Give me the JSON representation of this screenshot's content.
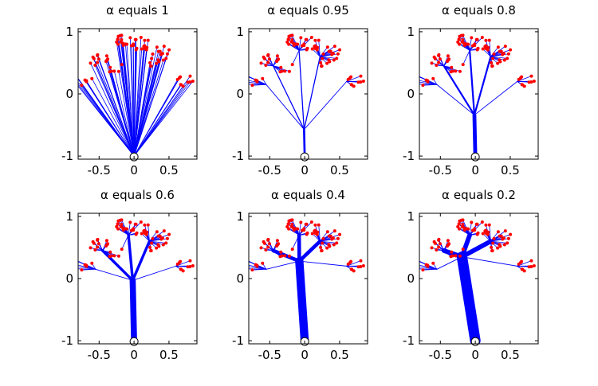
{
  "chart_data": [
    {
      "type": "tree",
      "alpha_symbol": "α",
      "title_text": "equals 1",
      "alpha": 1,
      "xlim": [
        -0.8,
        0.9
      ],
      "ylim": [
        -1.05,
        1.05
      ],
      "xticks": [
        -0.5,
        0,
        0.5
      ],
      "yticks": [
        -1,
        0,
        1
      ],
      "root": [
        0,
        -1
      ]
    },
    {
      "type": "tree",
      "alpha_symbol": "α",
      "title_text": "equals 0.95",
      "alpha": 0.95,
      "xlim": [
        -0.8,
        0.9
      ],
      "ylim": [
        -1.05,
        1.05
      ],
      "xticks": [
        -0.5,
        0,
        0.5
      ],
      "yticks": [
        -1,
        0,
        1
      ],
      "root": [
        0,
        -1
      ]
    },
    {
      "type": "tree",
      "alpha_symbol": "α",
      "title_text": "equals 0.8",
      "alpha": 0.8,
      "xlim": [
        -0.8,
        0.9
      ],
      "ylim": [
        -1.05,
        1.05
      ],
      "xticks": [
        -0.5,
        0,
        0.5
      ],
      "yticks": [
        -1,
        0,
        1
      ],
      "root": [
        0,
        -1
      ]
    },
    {
      "type": "tree",
      "alpha_symbol": "α",
      "title_text": "equals 0.6",
      "alpha": 0.6,
      "xlim": [
        -0.8,
        0.9
      ],
      "ylim": [
        -1.05,
        1.05
      ],
      "xticks": [
        -0.5,
        0,
        0.5
      ],
      "yticks": [
        -1,
        0,
        1
      ],
      "root": [
        0,
        -1
      ]
    },
    {
      "type": "tree",
      "alpha_symbol": "α",
      "title_text": "equals 0.4",
      "alpha": 0.4,
      "xlim": [
        -0.8,
        0.9
      ],
      "ylim": [
        -1.05,
        1.05
      ],
      "xticks": [
        -0.5,
        0,
        0.5
      ],
      "yticks": [
        -1,
        0,
        1
      ],
      "root": [
        0,
        -1
      ]
    },
    {
      "type": "tree",
      "alpha_symbol": "α",
      "title_text": "equals 0.2",
      "alpha": 0.2,
      "xlim": [
        -0.8,
        0.9
      ],
      "ylim": [
        -1.05,
        1.05
      ],
      "xticks": [
        -0.5,
        0,
        0.5
      ],
      "yticks": [
        -1,
        0,
        1
      ],
      "root": [
        0,
        -1
      ]
    }
  ],
  "colors": {
    "branch": "#0000ff",
    "leaf": "#ff0000",
    "axes": "#000000"
  }
}
